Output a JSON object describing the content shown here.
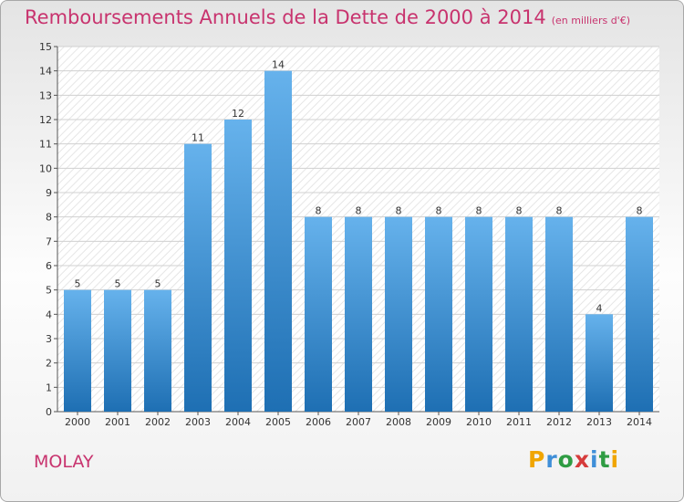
{
  "title": "Remboursements Annuels de la Dette de 2000 à 2014",
  "subtitle": "(en milliers d'€)",
  "town": "MOLAY",
  "logo": {
    "letters": [
      "P",
      "r",
      "o",
      "x",
      "i",
      "t",
      "i"
    ],
    "colors": [
      "#f0a500",
      "#3f8fd8",
      "#2f9c43",
      "#d63b3b",
      "#3f8fd8",
      "#2f9c43",
      "#f0a500"
    ]
  },
  "colors": {
    "title": "#c8336e",
    "bar_light": "#66b2ec",
    "bar_dark": "#1e6fb3"
  },
  "chart_data": {
    "type": "bar",
    "categories": [
      "2000",
      "2001",
      "2002",
      "2003",
      "2004",
      "2005",
      "2006",
      "2007",
      "2008",
      "2009",
      "2010",
      "2011",
      "2012",
      "2013",
      "2014"
    ],
    "values": [
      5,
      5,
      5,
      11,
      12,
      14,
      8,
      8,
      8,
      8,
      8,
      8,
      8,
      4,
      8
    ],
    "ylim": [
      0,
      15
    ],
    "yticks": [
      0,
      1,
      2,
      3,
      4,
      5,
      6,
      7,
      8,
      9,
      10,
      11,
      12,
      13,
      14,
      15
    ],
    "grid": true
  }
}
